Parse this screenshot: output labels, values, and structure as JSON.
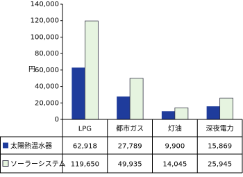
{
  "chart_data": {
    "type": "bar",
    "y_label": "円",
    "categories": [
      "LPG",
      "都市ガス",
      "灯油",
      "深夜電力"
    ],
    "series": [
      {
        "name": "太陽熱温水器",
        "color": "#1f3c9c",
        "values": [
          62918,
          27789,
          9900,
          15869
        ],
        "value_labels": [
          "62,918",
          "27,789",
          "9,900",
          "15,869"
        ]
      },
      {
        "name": "ソーラーシステム",
        "color": "#e6f4e0",
        "values": [
          119650,
          49935,
          14045,
          25945
        ],
        "value_labels": [
          "119,650",
          "49,935",
          "14,045",
          "25,945"
        ]
      }
    ],
    "ylim": [
      0,
      140000
    ],
    "yticks": [
      0,
      {
        "value": 20000,
        "label": "20,000"
      },
      {
        "value": 40000,
        "label": "40,000"
      },
      {
        "value": 60000,
        "label": "60,000"
      },
      {
        "value": 80000,
        "label": "80,000"
      },
      {
        "value": 100000,
        "label": "100,000"
      },
      {
        "value": 120000,
        "label": "120,000"
      },
      {
        "value": 140000,
        "label": "140,000"
      }
    ],
    "grid": false
  }
}
